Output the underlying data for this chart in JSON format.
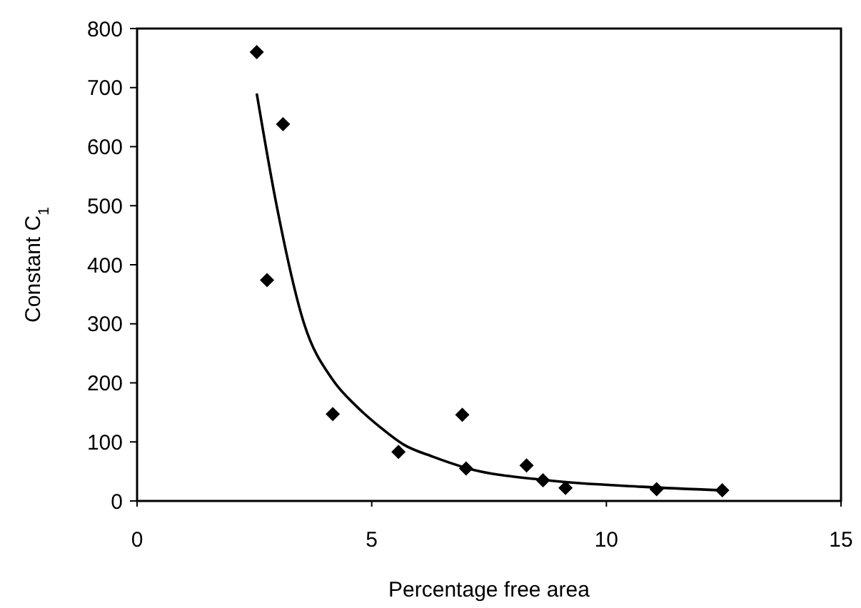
{
  "chart_data": {
    "type": "scatter",
    "xlabel": "Percentage free area",
    "ylabel": "Constant C$_{1}$",
    "xlim": [
      0,
      15
    ],
    "ylim": [
      0,
      800
    ],
    "xticks": [
      0,
      5,
      10,
      15
    ],
    "yticks": [
      0,
      100,
      200,
      300,
      400,
      500,
      600,
      700,
      800
    ],
    "grid": false,
    "series": [
      {
        "color": "#000000",
        "marker": "diamond",
        "x": [
          2.55,
          3.11,
          2.77,
          4.17,
          5.57,
          6.93,
          7.01,
          8.3,
          8.65,
          9.13,
          11.07,
          12.47
        ],
        "values": [
          760,
          638,
          374,
          147,
          83,
          146,
          55,
          60,
          35,
          22,
          20,
          18
        ]
      },
      {
        "type": "line",
        "color": "#000000",
        "marker": "none",
        "line_style": "solid",
        "x": [
          2.55,
          2.95,
          3.56,
          4.17,
          4.68,
          5.18,
          5.69,
          6.3,
          7.01,
          8.74,
          10.77,
          12.47
        ],
        "values": [
          690,
          510,
          300,
          205,
          160,
          125,
          95,
          75,
          56,
          35,
          24,
          18
        ]
      }
    ]
  }
}
